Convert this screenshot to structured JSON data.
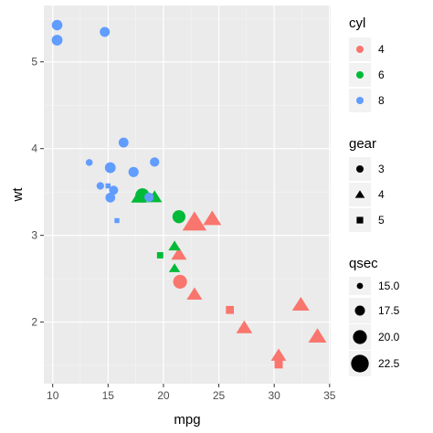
{
  "chart_data": {
    "type": "scatter",
    "xlabel": "mpg",
    "ylabel": "wt",
    "xlim": [
      9.2,
      35.1
    ],
    "ylim": [
      1.29,
      5.65
    ],
    "x_ticks": [
      10,
      15,
      20,
      25,
      30,
      35
    ],
    "x_tick_labels": [
      "10",
      "15",
      "20",
      "25",
      "30",
      "35"
    ],
    "y_ticks": [
      2,
      3,
      4,
      5
    ],
    "y_tick_labels": [
      "2",
      "3",
      "4",
      "5"
    ],
    "grid": true,
    "background": "#ebebeb",
    "colors": {
      "4": "#f8766d",
      "6": "#00ba38",
      "8": "#619cff"
    },
    "legends": [
      {
        "title": "cyl",
        "type": "color",
        "entries": [
          "4",
          "6",
          "8"
        ]
      },
      {
        "title": "gear",
        "type": "shape",
        "entries": [
          "3",
          "4",
          "5"
        ]
      },
      {
        "title": "qsec",
        "type": "size",
        "entries": [
          "15.0",
          "17.5",
          "20.0",
          "22.5"
        ],
        "values": [
          15.0,
          17.5,
          20.0,
          22.5
        ]
      }
    ],
    "legend_position": "right",
    "size_range": [
      14.5,
      22.9
    ],
    "points": [
      {
        "mpg": 21.0,
        "wt": 2.62,
        "cyl": "6",
        "gear": "4",
        "qsec": 16.46
      },
      {
        "mpg": 21.0,
        "wt": 2.875,
        "cyl": "6",
        "gear": "4",
        "qsec": 17.02
      },
      {
        "mpg": 22.8,
        "wt": 2.32,
        "cyl": "4",
        "gear": "4",
        "qsec": 18.61
      },
      {
        "mpg": 21.4,
        "wt": 3.215,
        "cyl": "6",
        "gear": "3",
        "qsec": 19.44
      },
      {
        "mpg": 18.7,
        "wt": 3.44,
        "cyl": "8",
        "gear": "3",
        "qsec": 17.02
      },
      {
        "mpg": 18.1,
        "wt": 3.46,
        "cyl": "6",
        "gear": "3",
        "qsec": 20.22
      },
      {
        "mpg": 14.3,
        "wt": 3.57,
        "cyl": "8",
        "gear": "3",
        "qsec": 15.84
      },
      {
        "mpg": 24.4,
        "wt": 3.19,
        "cyl": "4",
        "gear": "4",
        "qsec": 20.0
      },
      {
        "mpg": 22.8,
        "wt": 3.15,
        "cyl": "4",
        "gear": "4",
        "qsec": 22.9
      },
      {
        "mpg": 19.2,
        "wt": 3.44,
        "cyl": "6",
        "gear": "4",
        "qsec": 18.3
      },
      {
        "mpg": 17.8,
        "wt": 3.44,
        "cyl": "6",
        "gear": "4",
        "qsec": 18.9
      },
      {
        "mpg": 16.4,
        "wt": 4.07,
        "cyl": "8",
        "gear": "3",
        "qsec": 17.4
      },
      {
        "mpg": 17.3,
        "wt": 3.73,
        "cyl": "8",
        "gear": "3",
        "qsec": 17.6
      },
      {
        "mpg": 15.2,
        "wt": 3.78,
        "cyl": "8",
        "gear": "3",
        "qsec": 18.0
      },
      {
        "mpg": 10.4,
        "wt": 5.25,
        "cyl": "8",
        "gear": "3",
        "qsec": 17.98
      },
      {
        "mpg": 10.4,
        "wt": 5.424,
        "cyl": "8",
        "gear": "3",
        "qsec": 17.82
      },
      {
        "mpg": 14.7,
        "wt": 5.345,
        "cyl": "8",
        "gear": "3",
        "qsec": 17.42
      },
      {
        "mpg": 32.4,
        "wt": 2.2,
        "cyl": "4",
        "gear": "4",
        "qsec": 19.47
      },
      {
        "mpg": 30.4,
        "wt": 1.615,
        "cyl": "4",
        "gear": "4",
        "qsec": 18.52
      },
      {
        "mpg": 33.9,
        "wt": 1.835,
        "cyl": "4",
        "gear": "4",
        "qsec": 19.9
      },
      {
        "mpg": 21.5,
        "wt": 2.465,
        "cyl": "4",
        "gear": "3",
        "qsec": 20.01
      },
      {
        "mpg": 15.5,
        "wt": 3.52,
        "cyl": "8",
        "gear": "3",
        "qsec": 16.87
      },
      {
        "mpg": 15.2,
        "wt": 3.435,
        "cyl": "8",
        "gear": "3",
        "qsec": 17.3
      },
      {
        "mpg": 13.3,
        "wt": 3.84,
        "cyl": "8",
        "gear": "3",
        "qsec": 15.41
      },
      {
        "mpg": 19.2,
        "wt": 3.845,
        "cyl": "8",
        "gear": "3",
        "qsec": 17.05
      },
      {
        "mpg": 27.3,
        "wt": 1.935,
        "cyl": "4",
        "gear": "4",
        "qsec": 18.9
      },
      {
        "mpg": 26.0,
        "wt": 2.14,
        "cyl": "4",
        "gear": "5",
        "qsec": 16.7
      },
      {
        "mpg": 30.4,
        "wt": 1.513,
        "cyl": "4",
        "gear": "5",
        "qsec": 16.9
      },
      {
        "mpg": 15.8,
        "wt": 3.17,
        "cyl": "8",
        "gear": "5",
        "qsec": 14.5
      },
      {
        "mpg": 19.7,
        "wt": 2.77,
        "cyl": "6",
        "gear": "5",
        "qsec": 15.5
      },
      {
        "mpg": 15.0,
        "wt": 3.57,
        "cyl": "8",
        "gear": "5",
        "qsec": 14.6
      },
      {
        "mpg": 21.4,
        "wt": 2.78,
        "cyl": "4",
        "gear": "4",
        "qsec": 18.6
      }
    ]
  }
}
